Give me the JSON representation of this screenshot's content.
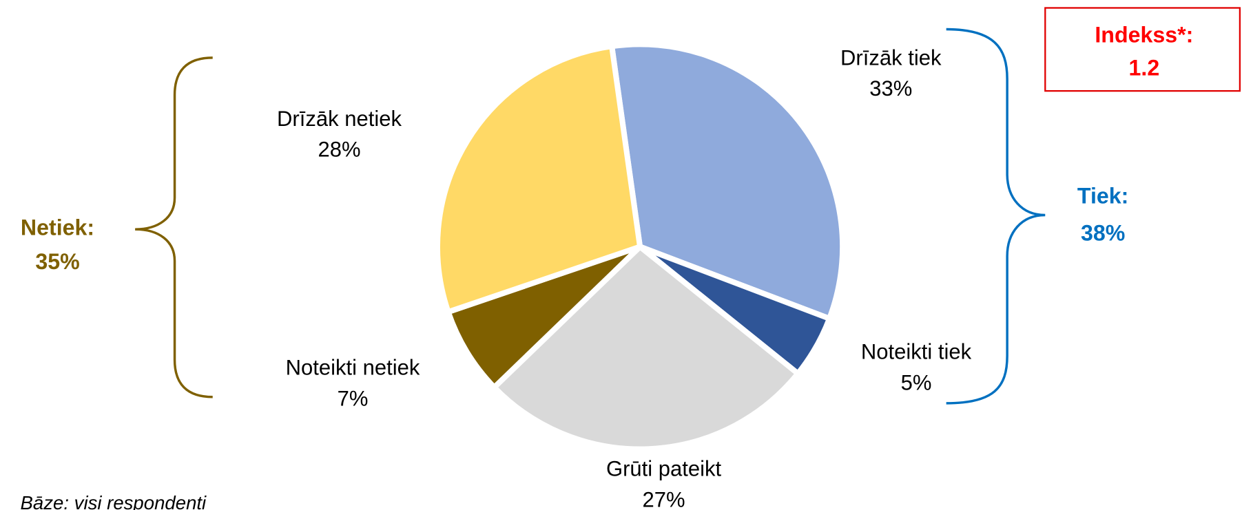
{
  "chart_data": {
    "type": "pie",
    "categories": [
      "Drīzāk tiek",
      "Noteikti tiek",
      "Grūti pateikt",
      "Noteikti netiek",
      "Drīzāk netiek"
    ],
    "values": [
      33,
      5,
      27,
      7,
      28
    ],
    "value_labels": [
      "33%",
      "5%",
      "27%",
      "7%",
      "28%"
    ],
    "colors": [
      "#8faadc",
      "#2f5597",
      "#d9d9d9",
      "#7f6000",
      "#ffd966"
    ],
    "annotations": {
      "netiek": {
        "label": "Netiek:",
        "value": "35%"
      },
      "tiek": {
        "label": "Tiek:",
        "value": "38%"
      },
      "index": {
        "label": "Indekss*:",
        "value": "1.2"
      },
      "footnote": "Bāze: visi respondenti"
    }
  }
}
